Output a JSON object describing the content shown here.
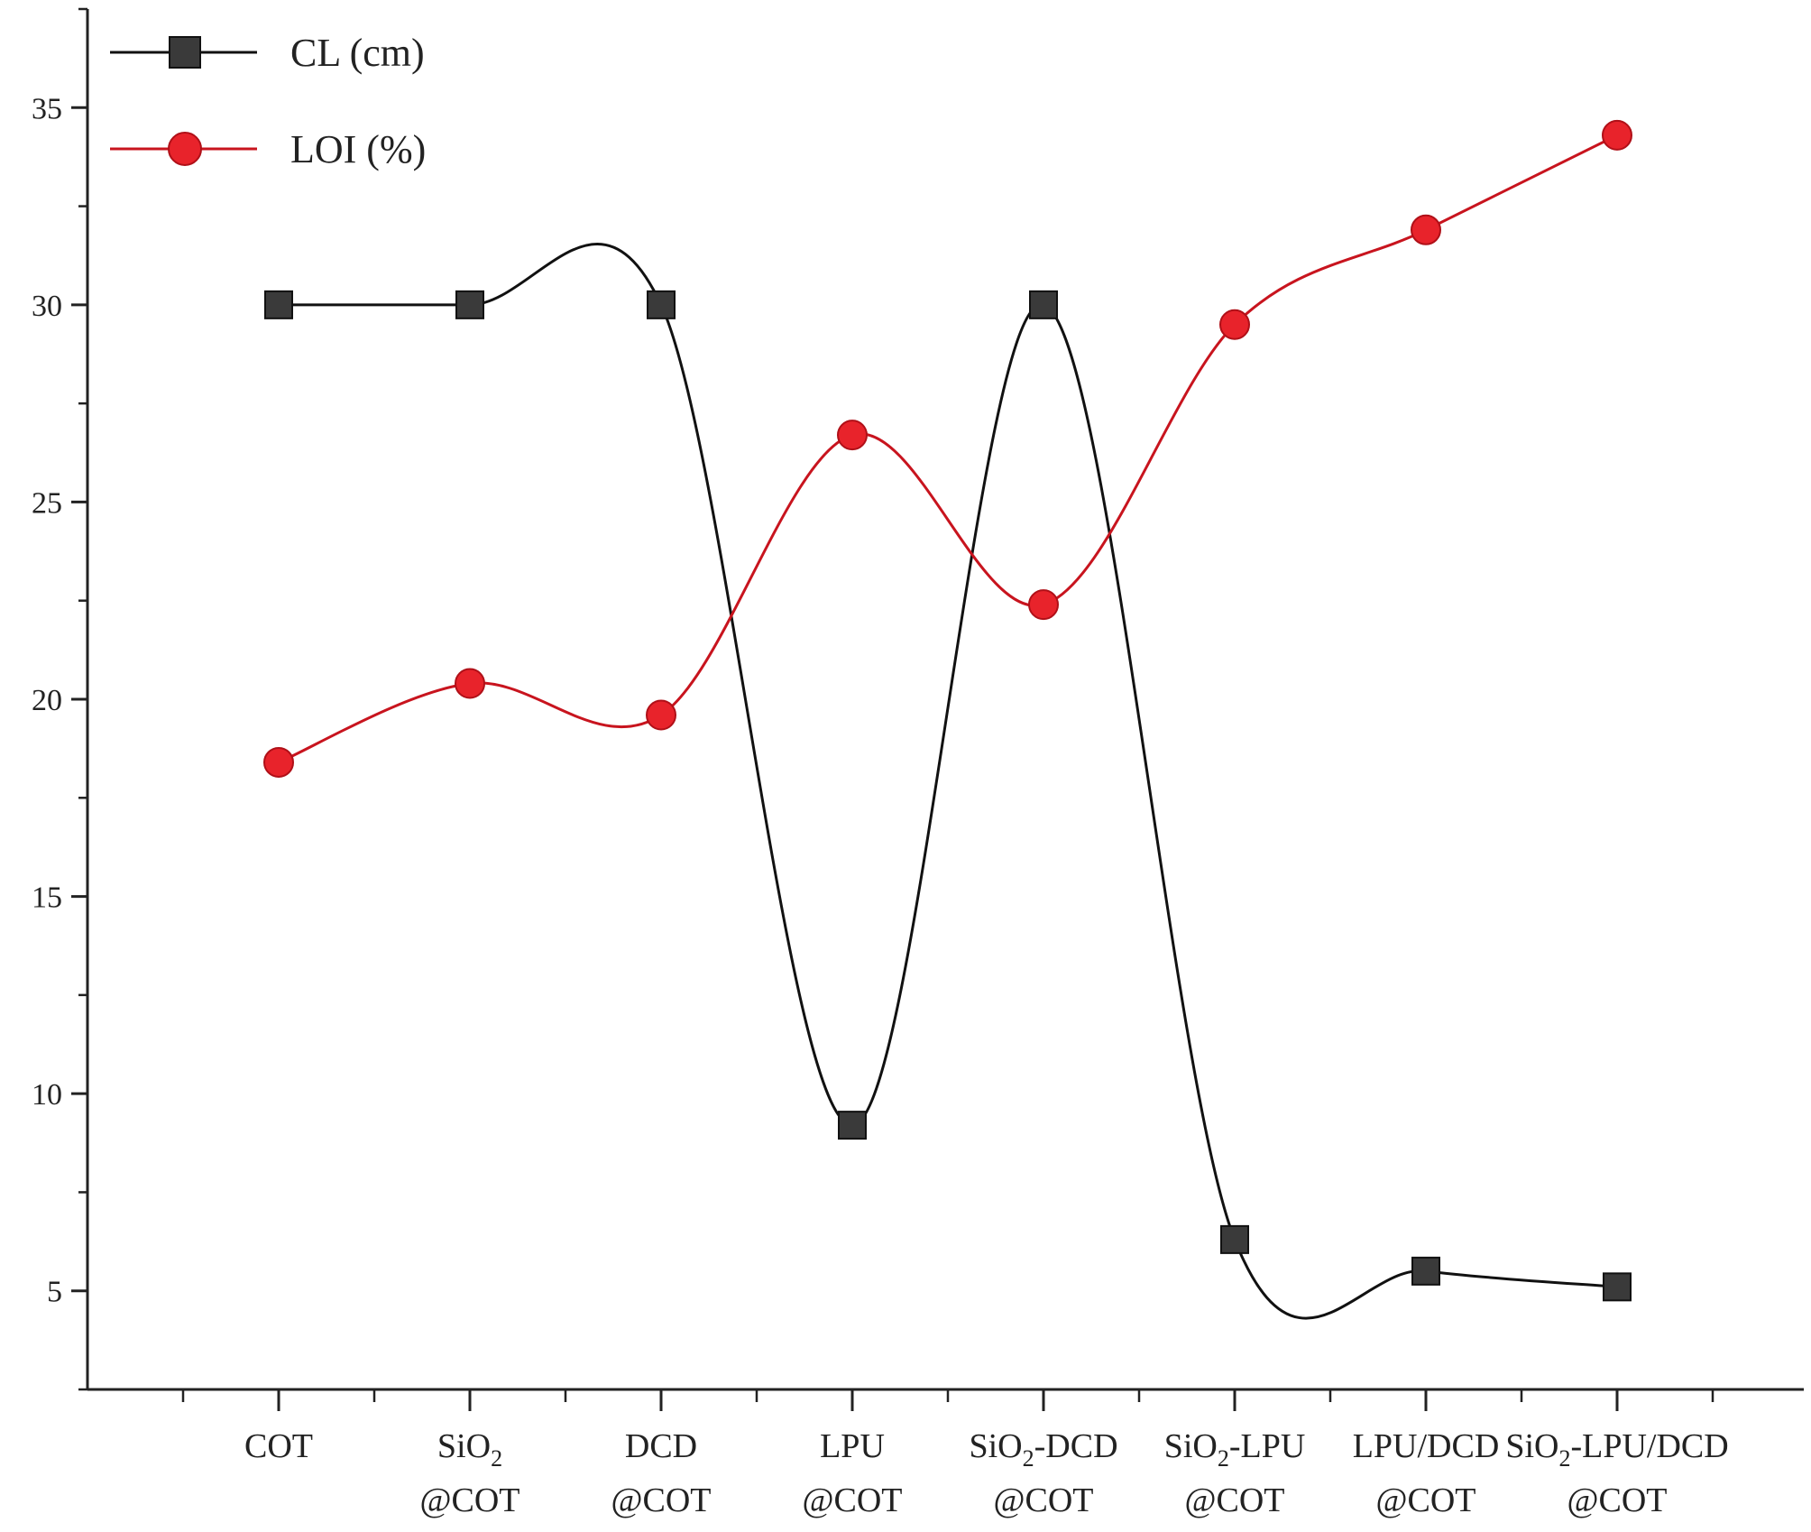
{
  "chart_data": {
    "type": "line",
    "categories": [
      {
        "line1": "COT",
        "line2": ""
      },
      {
        "line1": "SiO",
        "sub": "2",
        "rest": "",
        "line2": "@COT"
      },
      {
        "line1": "DCD",
        "line2": "@COT"
      },
      {
        "line1": "LPU",
        "line2": "@COT"
      },
      {
        "line1": "SiO",
        "sub": "2",
        "rest": "-DCD",
        "line2": "@COT"
      },
      {
        "line1": "SiO",
        "sub": "2",
        "rest": "-LPU",
        "line2": "@COT"
      },
      {
        "line1": "LPU/DCD",
        "line2": "@COT"
      },
      {
        "line1": "SiO",
        "sub": "2",
        "rest": "-LPU/DCD",
        "line2": "@COT"
      }
    ],
    "series": [
      {
        "name": "CL (cm)",
        "color": "#111111",
        "marker": "square",
        "marker_color": "#3a3a3a",
        "values": [
          30,
          30,
          30,
          9.2,
          30,
          6.3,
          5.5,
          5.1
        ]
      },
      {
        "name": "LOI (%)",
        "color": "#c8141e",
        "marker": "circle",
        "marker_color": "#e8232b",
        "values": [
          18.4,
          20.4,
          19.6,
          26.7,
          22.4,
          29.5,
          31.9,
          34.3
        ]
      }
    ],
    "yticks": [
      5,
      10,
      15,
      20,
      25,
      30,
      35
    ],
    "ylim": [
      2.5,
      37.5
    ],
    "xlabel": "",
    "ylabel": "",
    "legend_position": "top-left",
    "grid": false,
    "smooth": true
  }
}
